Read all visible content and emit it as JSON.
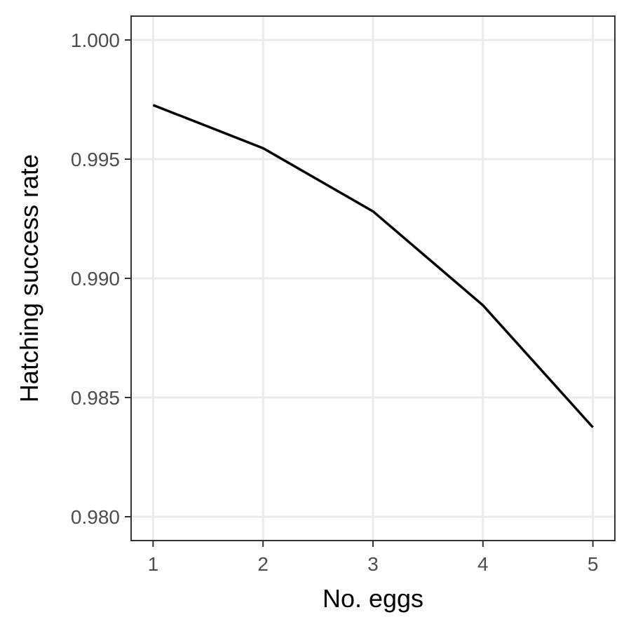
{
  "chart_data": {
    "type": "line",
    "xlabel": "No. eggs",
    "ylabel": "Hatching success rate",
    "x": [
      1,
      2,
      3,
      4,
      5
    ],
    "series": [
      {
        "values": [
          0.99727,
          0.99546,
          0.99281,
          0.98887,
          0.98375
        ],
        "color": "#000000"
      }
    ],
    "xlim": [
      0.8,
      5.2
    ],
    "ylim": [
      0.979,
      1.001
    ],
    "xticks": [
      1,
      2,
      3,
      4,
      5
    ],
    "xtick_labels": [
      "1",
      "2",
      "3",
      "4",
      "5"
    ],
    "yticks": [
      0.98,
      0.985,
      0.99,
      0.995,
      1.0
    ],
    "ytick_labels": [
      "0.980",
      "0.985",
      "0.990",
      "0.995",
      "1.000"
    ],
    "grid": true,
    "legend": "none",
    "theme": "bw"
  }
}
